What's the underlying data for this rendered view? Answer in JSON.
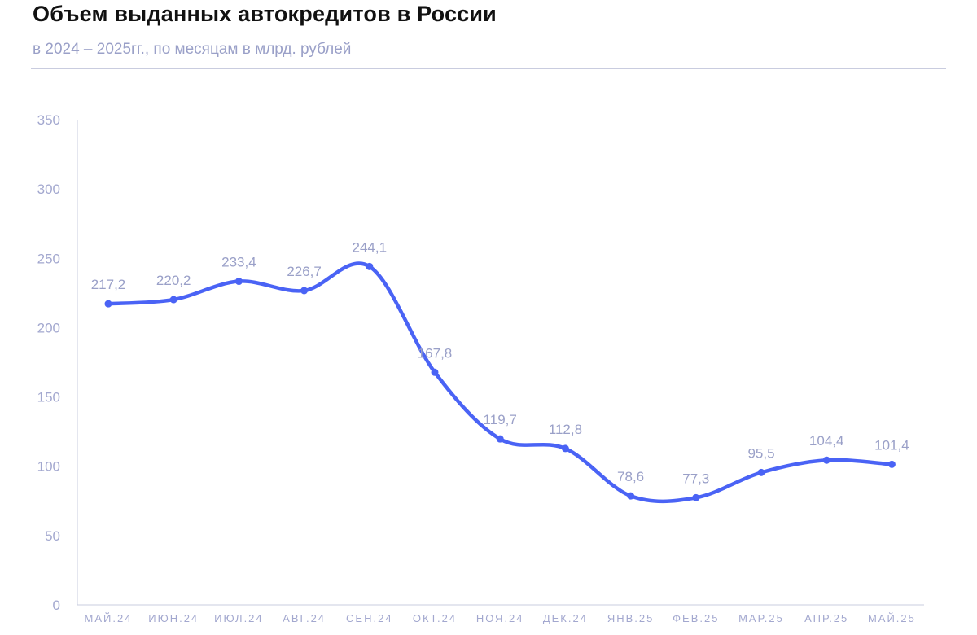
{
  "header": {
    "title": "Объем выданных автокредитов в России",
    "subtitle": "в 2024 – 2025гг., по месяцам в млрд. рублей"
  },
  "colors": {
    "line": "#4a63f5",
    "axis": "#c9ccdf",
    "tick_text": "#a3a8cf",
    "label_text": "#9aa0c8"
  },
  "chart_data": {
    "type": "line",
    "title": "Объем выданных автокредитов в России",
    "subtitle": "в 2024 – 2025гг., по месяцам в млрд. рублей",
    "xlabel": "",
    "ylabel": "",
    "categories": [
      "МАЙ.24",
      "ИЮН.24",
      "ИЮЛ.24",
      "АВГ.24",
      "СЕН.24",
      "ОКТ.24",
      "НОЯ.24",
      "ДЕК.24",
      "ЯНВ.25",
      "ФЕВ.25",
      "МАР.25",
      "АПР.25",
      "МАЙ.25"
    ],
    "series": [
      {
        "values": [
          217.2,
          220.2,
          233.4,
          226.7,
          244.1,
          167.8,
          119.7,
          112.8,
          78.6,
          77.3,
          95.5,
          104.4,
          101.4
        ],
        "labels": [
          "217,2",
          "220,2",
          "233,4",
          "226,7",
          "244,1",
          "167,8",
          "119,7",
          "112,8",
          "78,6",
          "77,3",
          "95,5",
          "104,4",
          "101,4"
        ]
      }
    ],
    "ylim": [
      0,
      350
    ],
    "yticks": [
      "0",
      "50",
      "100",
      "150",
      "200",
      "250",
      "300",
      "350"
    ],
    "grid": false,
    "legend": "none",
    "smooth": true
  }
}
